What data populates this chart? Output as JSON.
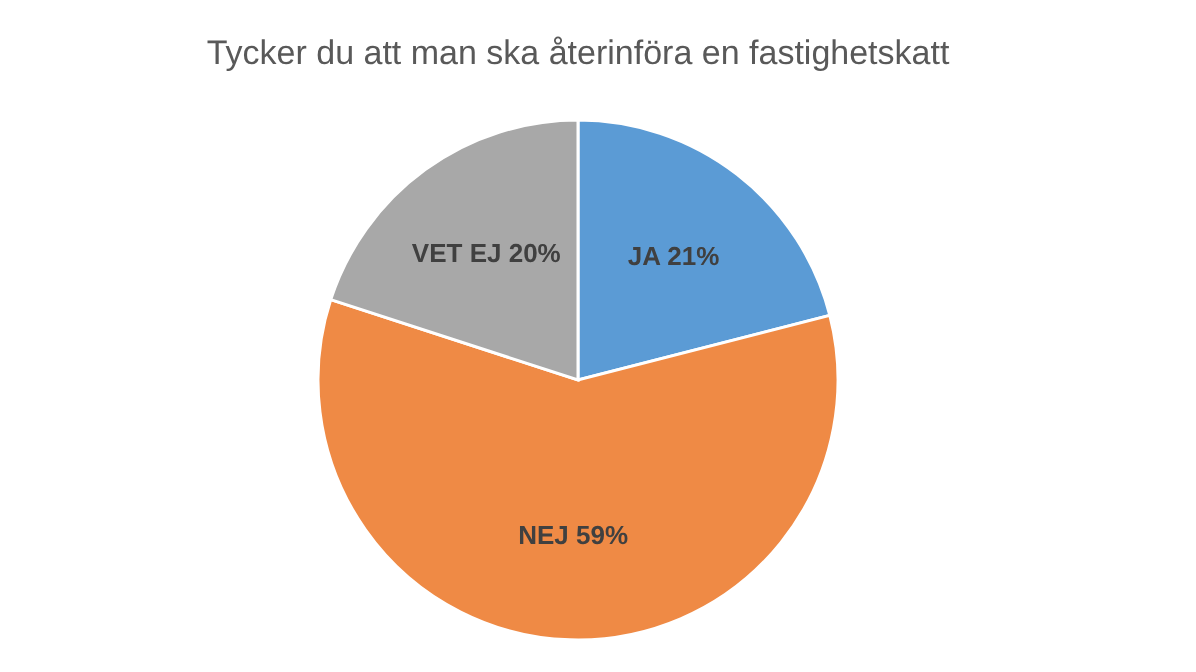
{
  "chart_data": {
    "type": "pie",
    "title": "Tycker du att man ska återinföra en fastighetskatt",
    "categories": [
      "JA",
      "NEJ",
      "VET EJ"
    ],
    "values": [
      21,
      59,
      20
    ],
    "value_labels": [
      "21%",
      "59%",
      "20%"
    ],
    "colors": [
      "#5b9bd5",
      "#ef8a45",
      "#a8a8a8"
    ],
    "legend": false
  }
}
